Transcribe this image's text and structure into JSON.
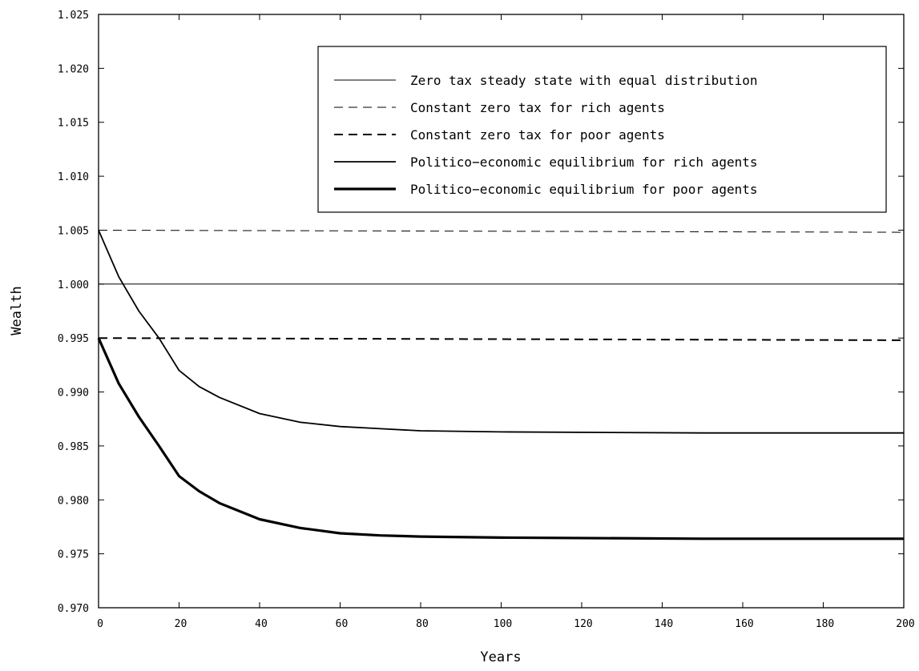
{
  "chart_data": {
    "type": "line",
    "xlabel": "Years",
    "ylabel": "Wealth",
    "xlim": [
      0,
      200
    ],
    "ylim": [
      0.97,
      1.025
    ],
    "x_ticks": [
      0,
      20,
      40,
      60,
      80,
      100,
      120,
      140,
      160,
      180,
      200
    ],
    "x_tick_labels": [
      "0",
      "20",
      "40",
      "60",
      "80",
      "100",
      "120",
      "140",
      "160",
      "180",
      "200"
    ],
    "y_ticks": [
      0.97,
      0.975,
      0.98,
      0.985,
      0.99,
      0.995,
      1.0,
      1.005,
      1.01,
      1.015,
      1.02,
      1.025
    ],
    "y_tick_labels": [
      "0.970",
      "0.975",
      "0.980",
      "0.985",
      "0.990",
      "0.995",
      "1.000",
      "1.005",
      "1.010",
      "1.015",
      "1.020",
      "1.025"
    ],
    "grid": false,
    "legend_position": "top-right",
    "series": [
      {
        "name": "Zero tax steady state with equal distribution",
        "style": "thin-solid",
        "color": "#000000",
        "x": [
          0,
          200
        ],
        "y": [
          1.0,
          1.0
        ]
      },
      {
        "name": "Constant zero tax for rich agents",
        "style": "thin-dashed",
        "color": "#000000",
        "x": [
          0,
          200
        ],
        "y": [
          1.005,
          1.0048
        ]
      },
      {
        "name": "Constant zero tax for poor agents",
        "style": "medium-dashed",
        "color": "#000000",
        "x": [
          0,
          200
        ],
        "y": [
          0.995,
          0.9948
        ]
      },
      {
        "name": "Politico−economic equilibrium for rich agents",
        "style": "medium-solid",
        "color": "#000000",
        "x": [
          0,
          5,
          10,
          15,
          20,
          25,
          30,
          40,
          50,
          60,
          70,
          80,
          100,
          150,
          200
        ],
        "y": [
          1.005,
          1.0007,
          0.9975,
          0.995,
          0.992,
          0.9905,
          0.9895,
          0.988,
          0.9872,
          0.9868,
          0.9866,
          0.9864,
          0.9863,
          0.9862,
          0.9862
        ]
      },
      {
        "name": "Politico−economic equilibrium for poor agents",
        "style": "thick-solid",
        "color": "#000000",
        "x": [
          0,
          5,
          10,
          15,
          20,
          25,
          30,
          40,
          50,
          60,
          70,
          80,
          100,
          150,
          200
        ],
        "y": [
          0.995,
          0.9908,
          0.9877,
          0.985,
          0.9822,
          0.9808,
          0.9797,
          0.9782,
          0.9774,
          0.9769,
          0.9767,
          0.9766,
          0.9765,
          0.9764,
          0.9764
        ]
      }
    ]
  }
}
